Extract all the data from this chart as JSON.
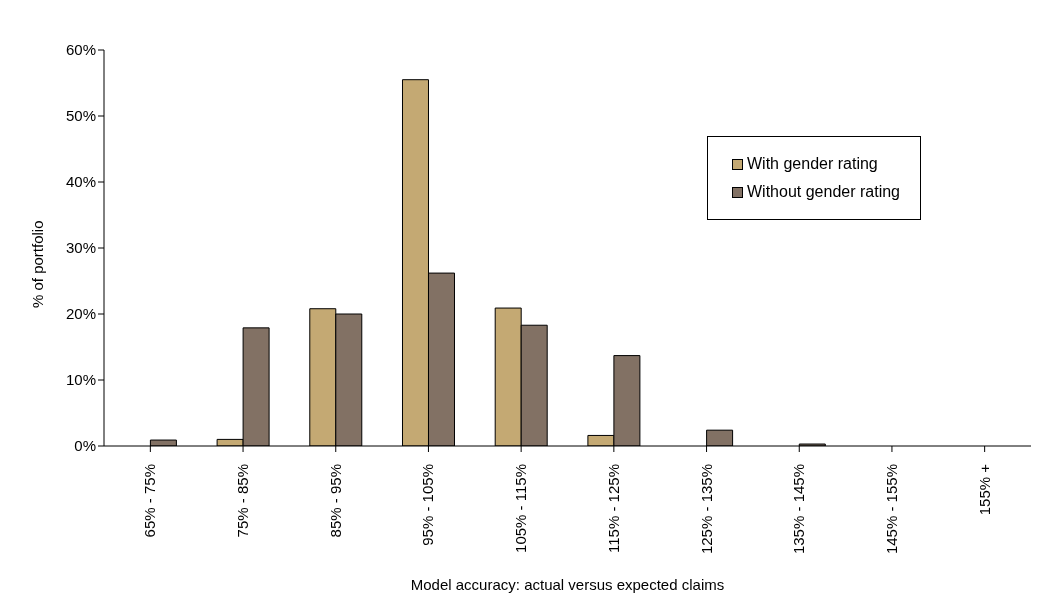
{
  "chart_data": {
    "type": "bar",
    "xlabel": "Model accuracy: actual versus expected claims",
    "ylabel": "% of portfolio",
    "categories": [
      "65% - 75%",
      "75% - 85%",
      "85% - 95%",
      "95% - 105%",
      "105% - 115%",
      "115% - 125%",
      "125% - 135%",
      "135% - 145%",
      "145% - 155%",
      "155% +"
    ],
    "series": [
      {
        "name": "With gender rating",
        "color": "#c4a973",
        "values": [
          0,
          1,
          20.8,
          55.5,
          20.9,
          1.6,
          0,
          0,
          0,
          0
        ]
      },
      {
        "name": "Without gender rating",
        "color": "#827164",
        "values": [
          0.9,
          17.9,
          20,
          26.2,
          18.3,
          13.7,
          2.4,
          0.3,
          0,
          0
        ]
      }
    ],
    "ylim": [
      0,
      60
    ],
    "yticks": [
      {
        "value": 0,
        "label": "0%"
      },
      {
        "value": 10,
        "label": "10%"
      },
      {
        "value": 20,
        "label": "20%"
      },
      {
        "value": 30,
        "label": "30%"
      },
      {
        "value": 40,
        "label": "40%"
      },
      {
        "value": 50,
        "label": "50%"
      },
      {
        "value": 60,
        "label": "60%"
      }
    ],
    "grid": false,
    "legend": "top right"
  }
}
